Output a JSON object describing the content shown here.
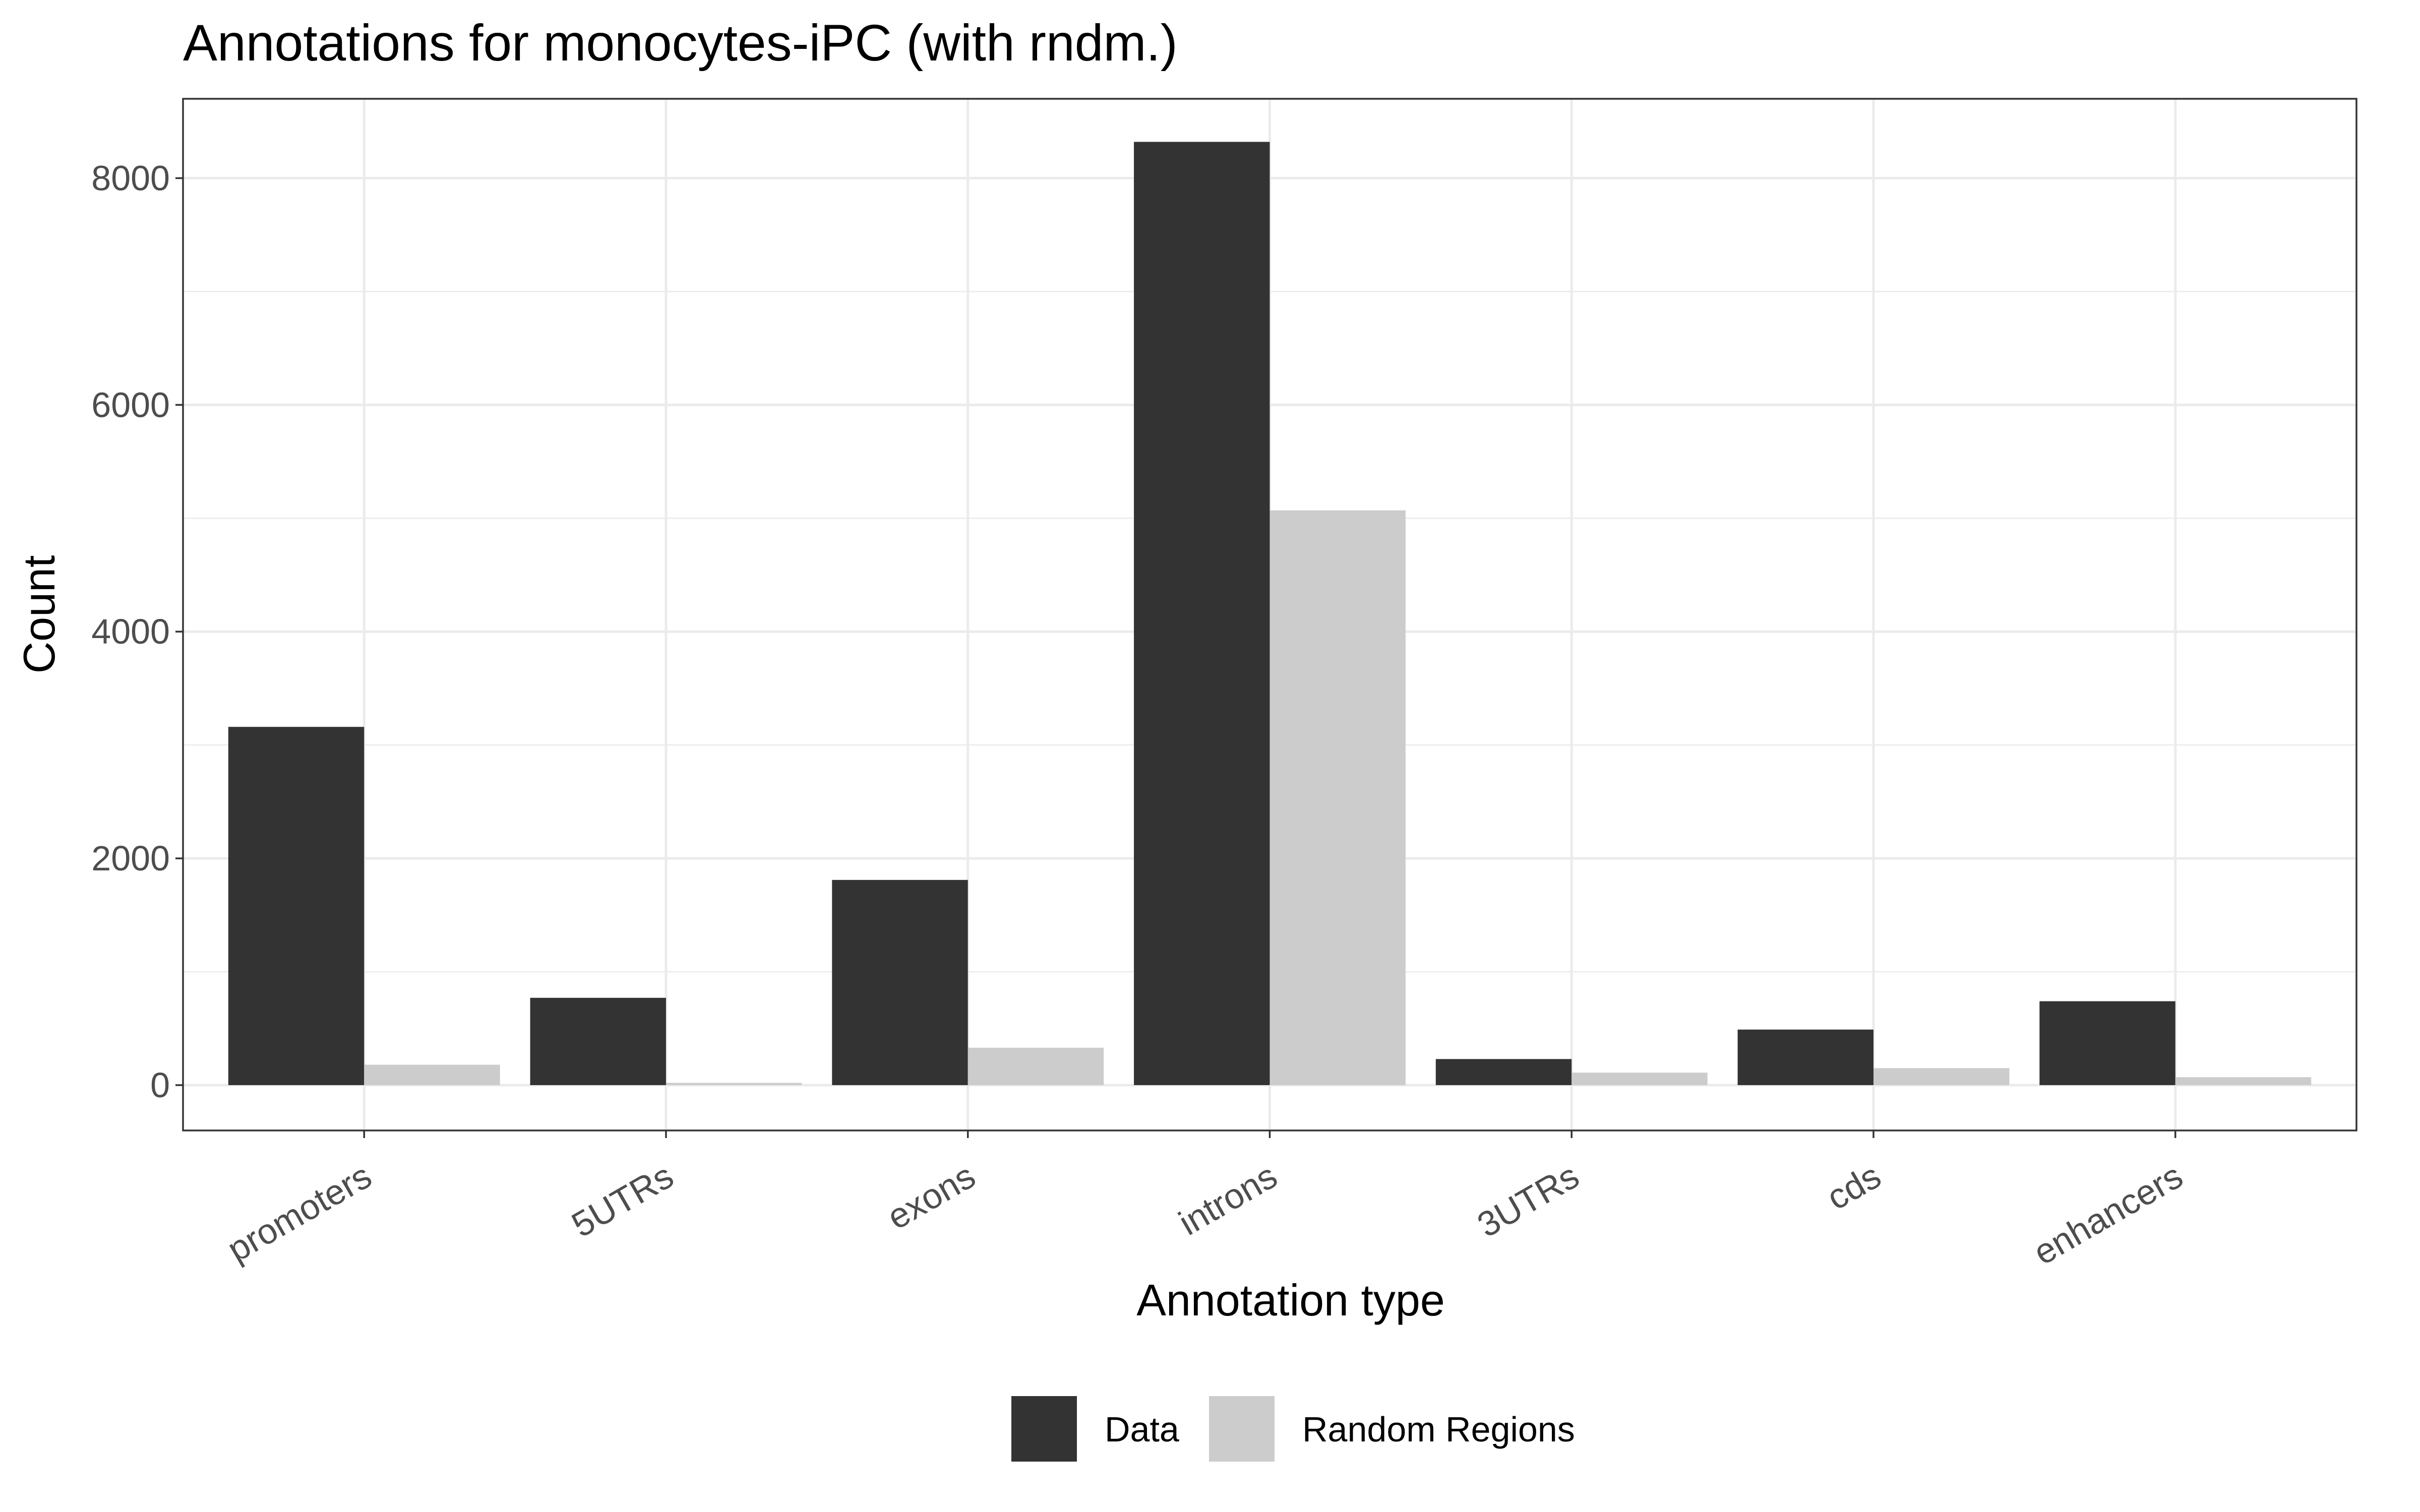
{
  "chart_data": {
    "type": "bar",
    "title": "Annotations for monocytes-iPC (with rndm.)",
    "xlabel": "Annotation type",
    "ylabel": "Count",
    "categories": [
      "promoters",
      "5UTRs",
      "exons",
      "introns",
      "3UTRs",
      "cds",
      "enhancers"
    ],
    "series": [
      {
        "name": "Data",
        "color": "#333333",
        "values": [
          3160,
          770,
          1810,
          8320,
          230,
          490,
          740
        ]
      },
      {
        "name": "Random Regions",
        "color": "#cccccc",
        "values": [
          180,
          20,
          330,
          5070,
          110,
          150,
          70
        ]
      }
    ],
    "ylim": [
      -400,
      8700
    ],
    "yticks": [
      0,
      2000,
      4000,
      6000,
      8000
    ],
    "grid": true,
    "legend_position": "bottom"
  }
}
